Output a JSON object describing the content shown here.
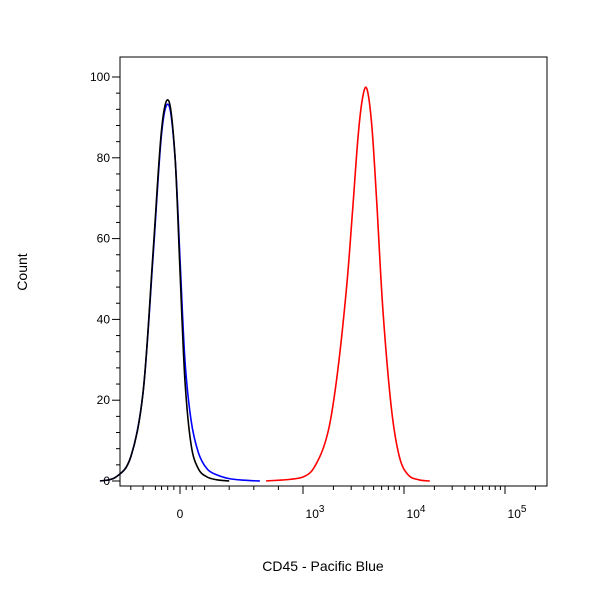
{
  "chart_data": {
    "type": "line",
    "xlabel": "CD45 - Pacific Blue",
    "ylabel": "Count",
    "x_scale": "biexponential",
    "ylim": [
      0,
      100
    ],
    "y_ticks": [
      "0",
      "20",
      "40",
      "60",
      "80",
      "100"
    ],
    "x_ticks": [
      {
        "value": 0,
        "label": "0",
        "base": "",
        "exp": ""
      },
      {
        "value": 1000,
        "label": "",
        "base": "10",
        "exp": "3"
      },
      {
        "value": 10000,
        "label": "",
        "base": "10",
        "exp": "4"
      },
      {
        "value": 100000,
        "label": "",
        "base": "10",
        "exp": "5"
      }
    ],
    "grid": false,
    "legend": "none",
    "series": [
      {
        "color": "#0000ff",
        "x": [
          -650,
          -520,
          -400,
          -300,
          -220,
          -150,
          -90,
          -40,
          0,
          40,
          90,
          150,
          220,
          300,
          400,
          520,
          650
        ],
        "y": [
          0,
          1,
          6,
          22,
          55,
          86,
          93,
          80,
          55,
          30,
          15,
          7,
          3,
          1.5,
          0.6,
          0.2,
          0
        ]
      },
      {
        "color": "#000000",
        "x": [
          -650,
          -520,
          -400,
          -300,
          -220,
          -150,
          -90,
          -40,
          0,
          40,
          90,
          150,
          220,
          300,
          400
        ],
        "y": [
          0,
          1,
          6,
          22,
          56,
          87,
          94,
          80,
          52,
          25,
          9,
          3,
          1,
          0.3,
          0
        ]
      },
      {
        "color": "#ff0000",
        "x": [
          700,
          1000,
          1400,
          1800,
          2200,
          2700,
          3100,
          3500,
          3900,
          4300,
          4800,
          5400,
          6200,
          7500,
          9000,
          11000,
          14000,
          18000
        ],
        "y": [
          0,
          1,
          5,
          13,
          27,
          48,
          67,
          85,
          95,
          97,
          88,
          68,
          42,
          18,
          6,
          1.5,
          0.3,
          0
        ]
      }
    ]
  }
}
